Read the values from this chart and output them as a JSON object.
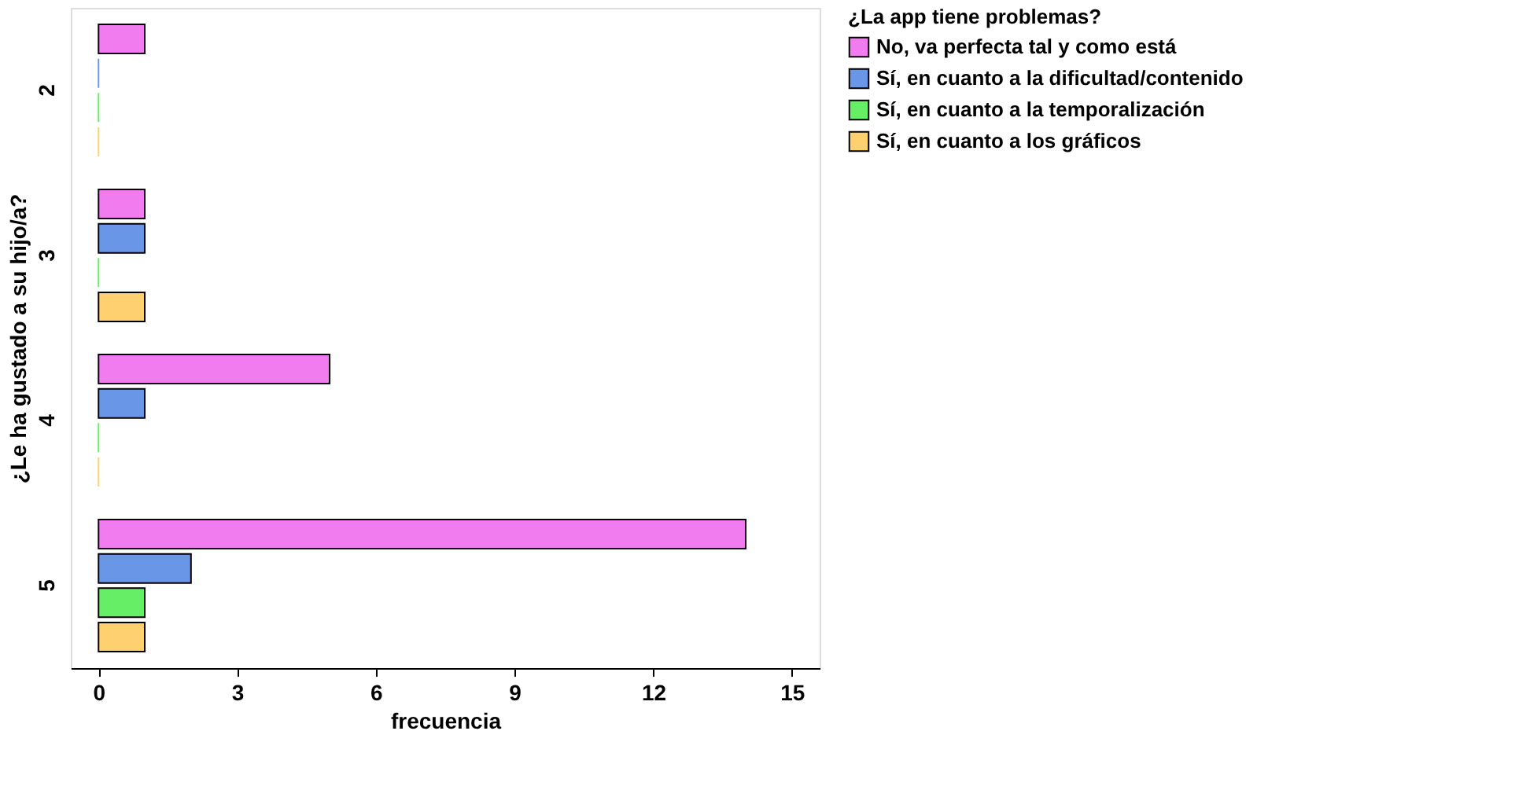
{
  "chart_data": {
    "type": "bar",
    "orientation": "horizontal",
    "ylabel": "¿Le ha gustado a su hijo/a?",
    "xlabel": "frecuencia",
    "legend_title": "¿La app tiene problemas?",
    "legend": "top right",
    "grid": false,
    "categories": [
      "2",
      "3",
      "4",
      "5"
    ],
    "series": [
      {
        "name": "No, va perfecta tal y como está",
        "color": "#f07cf0",
        "values": [
          1,
          1,
          5,
          14
        ]
      },
      {
        "name": "Sí, en cuanto a la dificultad/contenido",
        "color": "#6a96e8",
        "values": [
          0,
          1,
          1,
          2
        ]
      },
      {
        "name": "Sí, en cuanto a la temporalización",
        "color": "#66ee66",
        "values": [
          0,
          0,
          0,
          1
        ]
      },
      {
        "name": "Sí, en cuanto a los gráficos",
        "color": "#ffd070",
        "values": [
          0,
          1,
          0,
          1
        ]
      }
    ],
    "xlim": [
      -0.6,
      15.6
    ],
    "xticks": [
      0,
      3,
      6,
      9,
      12,
      15
    ]
  }
}
